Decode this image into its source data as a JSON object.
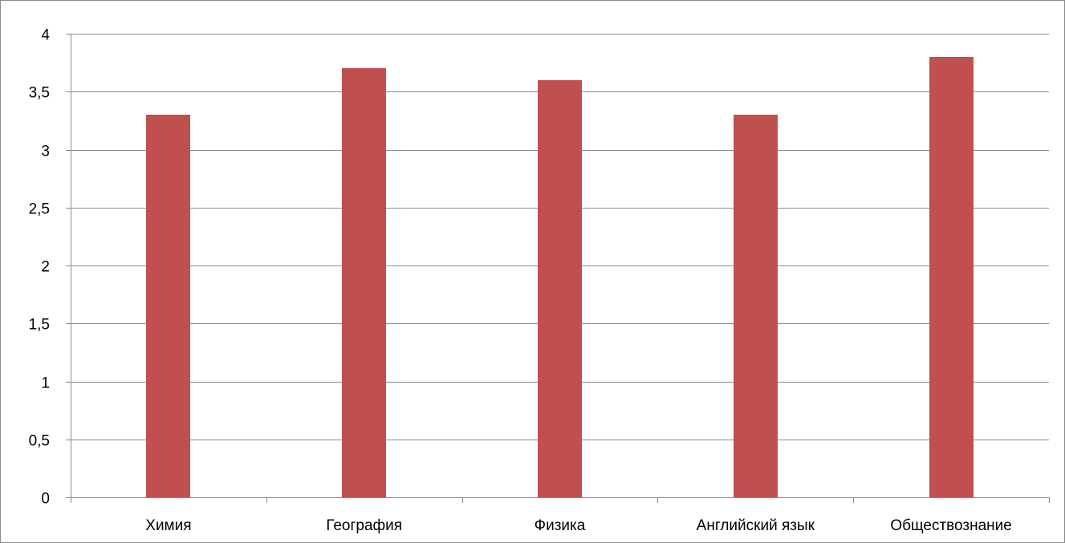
{
  "chart_data": {
    "type": "bar",
    "categories": [
      "Химия",
      "География",
      "Физика",
      "Английский язык",
      "Обществознание"
    ],
    "values": [
      3.3,
      3.7,
      3.6,
      3.3,
      3.8
    ],
    "ylim": [
      0,
      4
    ],
    "yticks": [
      0,
      0.5,
      1,
      1.5,
      2,
      2.5,
      3,
      3.5,
      4
    ],
    "ytick_labels": [
      "0",
      "0,5",
      "1",
      "1,5",
      "2",
      "2,5",
      "3",
      "3,5",
      "4"
    ],
    "grid": "horizontal",
    "legend": "none",
    "bar_color": "#c0504d",
    "gridline_color": "#8c8c8c",
    "axis_color": "#8c8c8c"
  }
}
